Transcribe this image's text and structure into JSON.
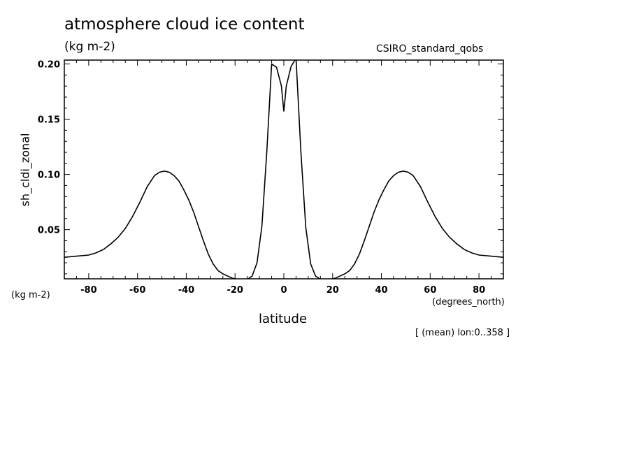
{
  "header": {
    "title": "atmosphere cloud ice content",
    "units": "(kg m-2)",
    "source": "CSIRO_standard_qobs"
  },
  "axes": {
    "y_units": "(kg m-2)",
    "x_units": "(degrees_north)",
    "x_label": "latitude",
    "y_label": "sh_cldi_zonal"
  },
  "note": "[ (mean) lon:0..358 ]",
  "chart_data": {
    "type": "line",
    "title": "atmosphere cloud ice content",
    "xlabel": "latitude",
    "ylabel": "sh_cldi_zonal",
    "xlim": [
      -90,
      90
    ],
    "ylim": [
      0.0055,
      0.2035
    ],
    "x_ticks": [
      -80,
      -60,
      -40,
      -20,
      0,
      20,
      40,
      60,
      80
    ],
    "x_tick_labels": [
      "-80",
      "-60",
      "-40",
      "-20",
      "0",
      "20",
      "40",
      "60",
      "80"
    ],
    "y_ticks": [
      0.05,
      0.1,
      0.15,
      0.2
    ],
    "y_tick_labels": [
      "0.05",
      "0.10",
      "0.15",
      "0.20"
    ],
    "grid": false,
    "series": [
      {
        "x": [
          -90,
          -85,
          -80,
          -77,
          -74,
          -71,
          -68,
          -65,
          -62,
          -59,
          -56,
          -53,
          -51,
          -49,
          -47,
          -45,
          -43,
          -41,
          -39,
          -37,
          -35,
          -33,
          -31,
          -29,
          -27,
          -25,
          -23,
          -21,
          -19,
          -17,
          -15,
          -13,
          -11,
          -9,
          -7,
          -5,
          -3,
          -1,
          0,
          1,
          3,
          5,
          7,
          9,
          11,
          13,
          15,
          17,
          19,
          21,
          23,
          25,
          27,
          29,
          31,
          33,
          35,
          37,
          39,
          41,
          43,
          45,
          47,
          49,
          51,
          53,
          56,
          59,
          62,
          65,
          68,
          71,
          74,
          77,
          80,
          85,
          90
        ],
        "y": [
          0.025,
          0.026,
          0.027,
          0.029,
          0.032,
          0.037,
          0.043,
          0.051,
          0.062,
          0.075,
          0.089,
          0.099,
          0.102,
          0.103,
          0.102,
          0.099,
          0.094,
          0.086,
          0.077,
          0.066,
          0.053,
          0.04,
          0.028,
          0.019,
          0.013,
          0.01,
          0.008,
          0.006,
          0.005,
          0.005,
          0.005,
          0.008,
          0.02,
          0.053,
          0.12,
          0.2,
          0.197,
          0.18,
          0.157,
          0.18,
          0.198,
          0.205,
          0.12,
          0.052,
          0.019,
          0.008,
          0.005,
          0.005,
          0.005,
          0.006,
          0.008,
          0.01,
          0.013,
          0.019,
          0.028,
          0.04,
          0.053,
          0.066,
          0.077,
          0.086,
          0.094,
          0.099,
          0.102,
          0.103,
          0.102,
          0.099,
          0.089,
          0.075,
          0.062,
          0.051,
          0.043,
          0.037,
          0.032,
          0.029,
          0.027,
          0.026,
          0.025
        ]
      }
    ]
  }
}
